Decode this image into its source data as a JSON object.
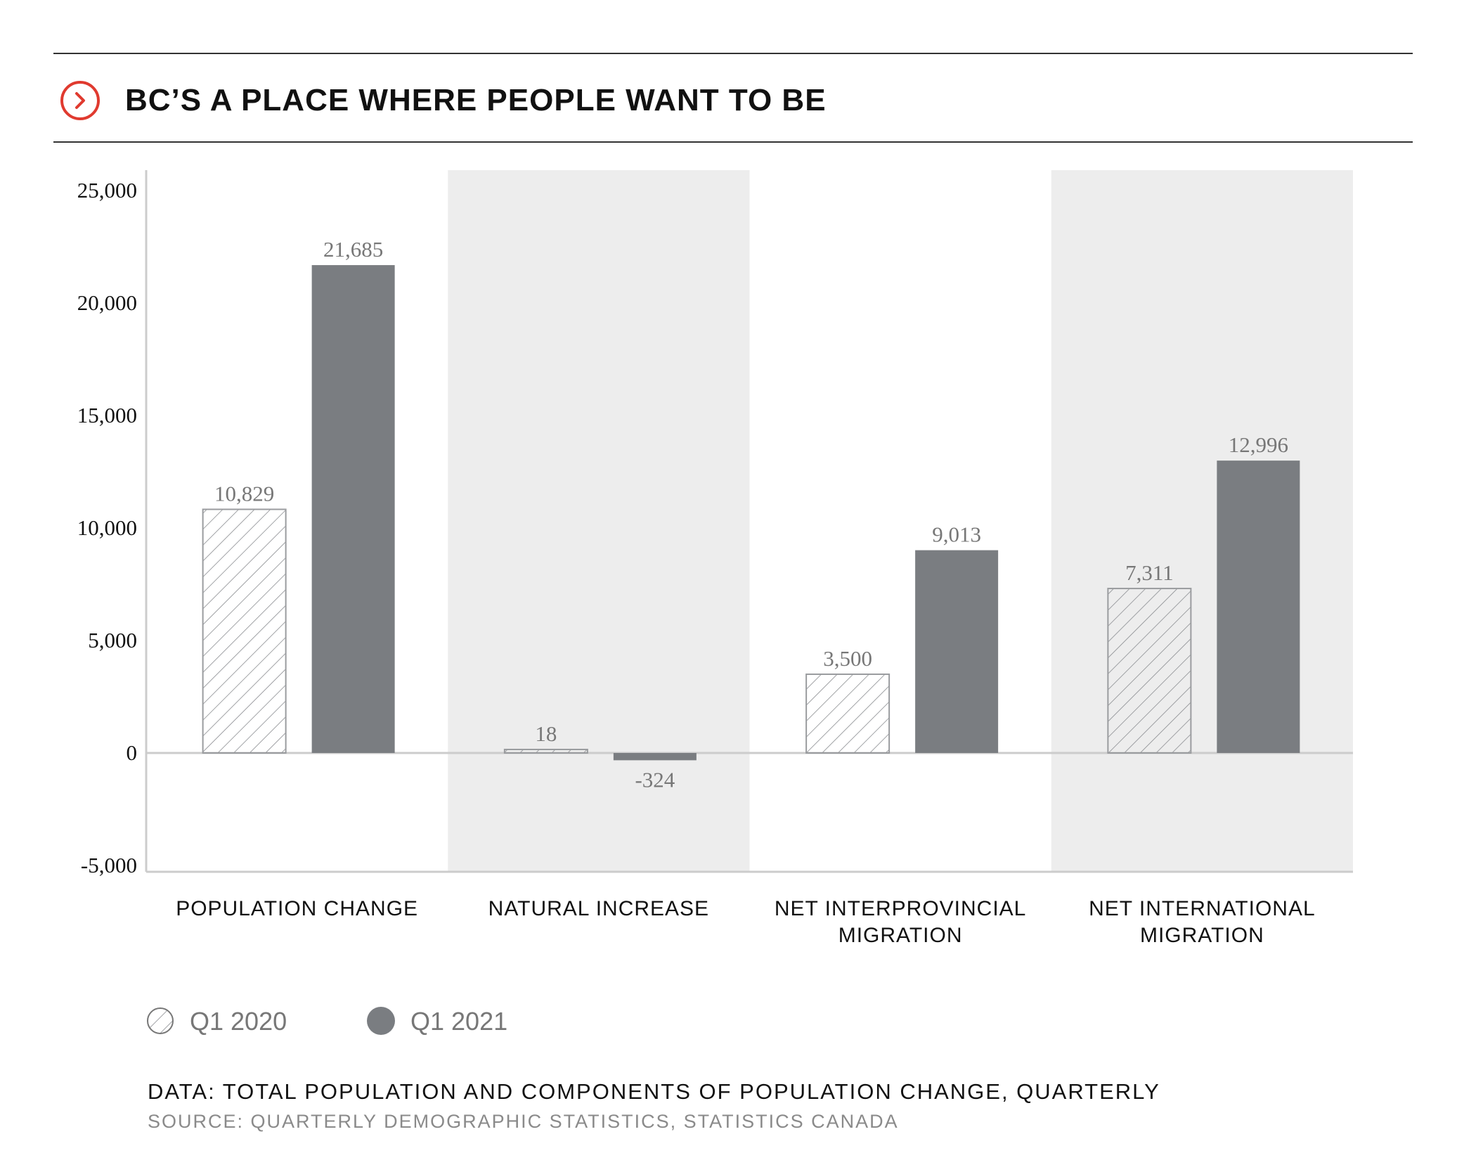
{
  "header": {
    "title": "BC’S A PLACE WHERE PEOPLE WANT TO BE",
    "icon": "chevron-right-circle-icon",
    "accent_color": "#e03a2f"
  },
  "chart_data": {
    "type": "bar",
    "title": "BC’S A PLACE WHERE PEOPLE WANT TO BE",
    "xlabel": "",
    "ylabel": "",
    "ylim": [
      -5000,
      26000
    ],
    "yticks": [
      25000,
      20000,
      15000,
      10000,
      5000,
      0,
      -5000
    ],
    "ytick_labels": [
      "25,000",
      "20,000",
      "15,000",
      "10,000",
      "5,000",
      "0",
      "-5,000"
    ],
    "categories": [
      "POPULATION CHANGE",
      "NATURAL INCREASE",
      "NET INTERPROVINCIAL MIGRATION",
      "NET INTERNATIONAL MIGRATION"
    ],
    "category_label_lines": [
      [
        "POPULATION CHANGE"
      ],
      [
        "NATURAL INCREASE"
      ],
      [
        "NET INTERPROVINCIAL",
        "MIGRATION"
      ],
      [
        "NET INTERNATIONAL",
        "MIGRATION"
      ]
    ],
    "series": [
      {
        "name": "Q1 2020",
        "values": [
          10829,
          18,
          3500,
          7311
        ],
        "value_labels": [
          "10,829",
          "18",
          "3,500",
          "7,311"
        ],
        "style": "hatched",
        "color": "#7a7d81"
      },
      {
        "name": "Q1 2021",
        "values": [
          21685,
          -324,
          9013,
          12996
        ],
        "value_labels": [
          "21,685",
          "-324",
          "9,013",
          "12,996"
        ],
        "style": "solid",
        "color": "#7a7d81"
      }
    ],
    "band_color": "#ededed",
    "legend_position": "bottom-left",
    "grid": false
  },
  "footer": {
    "data_note": "DATA: TOTAL POPULATION AND COMPONENTS OF POPULATION CHANGE, QUARTERLY",
    "source_note": "SOURCE: QUARTERLY DEMOGRAPHIC STATISTICS, STATISTICS CANADA"
  }
}
